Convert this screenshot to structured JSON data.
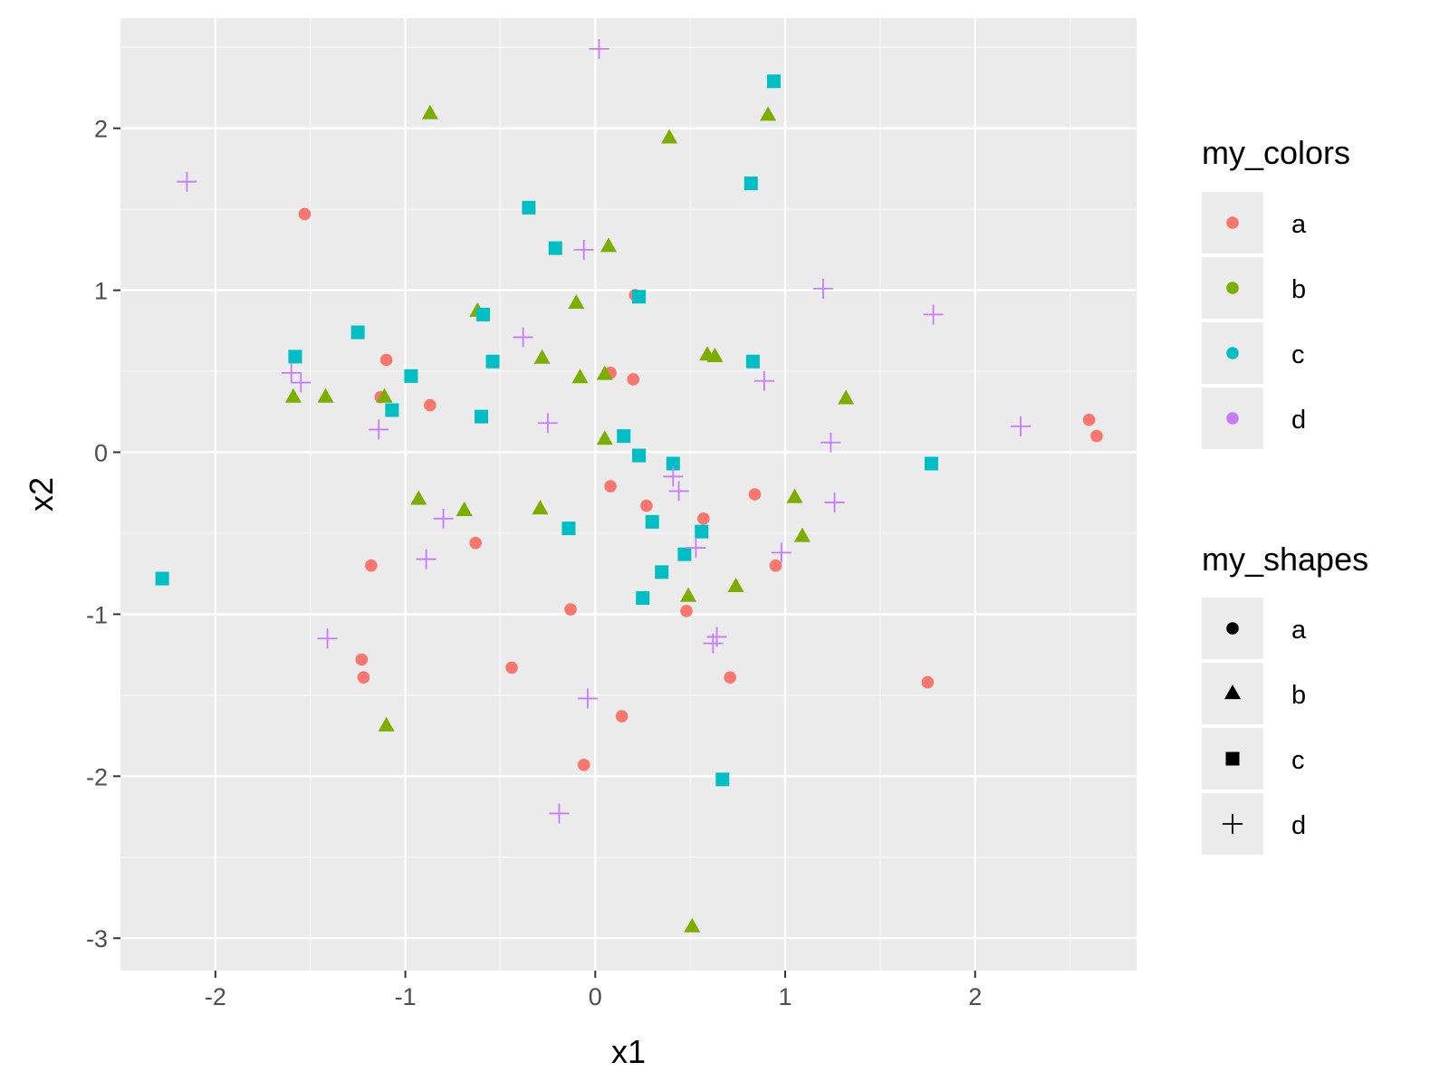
{
  "chart_data": {
    "type": "scatter",
    "title": "",
    "xlabel": "x1",
    "ylabel": "x2",
    "xlim": [
      -2.5,
      2.85
    ],
    "ylim": [
      -3.2,
      2.68
    ],
    "x_ticks": [
      -2,
      -1,
      0,
      1,
      2
    ],
    "y_ticks": [
      -3,
      -2,
      -1,
      0,
      1,
      2
    ],
    "x_tick_labels": [
      "-2",
      "-1",
      "0",
      "1",
      "2"
    ],
    "y_tick_labels": [
      "-3",
      "-2",
      "-1",
      "0",
      "1",
      "2"
    ],
    "grid": true,
    "legend_position": "right",
    "colors": {
      "a": "#F8766D",
      "b": "#7CAE00",
      "c": "#00BFC4",
      "d": "#C77CFF"
    },
    "legends": [
      {
        "title": "my_colors",
        "kind": "color",
        "entries": [
          "a",
          "b",
          "c",
          "d"
        ]
      },
      {
        "title": "my_shapes",
        "kind": "shape",
        "entries": [
          "a",
          "b",
          "c",
          "d"
        ]
      }
    ],
    "shapes": {
      "a": "circle",
      "b": "triangle",
      "c": "square",
      "d": "plus"
    },
    "series": [
      {
        "name": "a",
        "points": [
          [
            -1.53,
            1.47
          ],
          [
            -1.1,
            0.57
          ],
          [
            -1.13,
            0.34
          ],
          [
            -0.87,
            0.29
          ],
          [
            -1.18,
            -0.7
          ],
          [
            -1.23,
            -1.28
          ],
          [
            -1.22,
            -1.39
          ],
          [
            -0.63,
            -0.56
          ],
          [
            -0.44,
            -1.33
          ],
          [
            -0.13,
            -0.97
          ],
          [
            -0.06,
            -1.93
          ],
          [
            0.14,
            -1.63
          ],
          [
            0.08,
            0.49
          ],
          [
            0.2,
            0.45
          ],
          [
            0.21,
            0.97
          ],
          [
            0.08,
            -0.21
          ],
          [
            0.27,
            -0.33
          ],
          [
            0.57,
            -0.41
          ],
          [
            0.84,
            -0.26
          ],
          [
            0.95,
            -0.7
          ],
          [
            0.48,
            -0.98
          ],
          [
            0.71,
            -1.39
          ],
          [
            1.75,
            -1.42
          ],
          [
            2.6,
            0.2
          ],
          [
            2.64,
            0.1
          ]
        ]
      },
      {
        "name": "b",
        "points": [
          [
            -0.87,
            2.09
          ],
          [
            0.39,
            1.94
          ],
          [
            0.91,
            2.08
          ],
          [
            0.07,
            1.27
          ],
          [
            -0.1,
            0.92
          ],
          [
            -0.62,
            0.87
          ],
          [
            -1.59,
            0.34
          ],
          [
            -1.42,
            0.34
          ],
          [
            -1.11,
            0.34
          ],
          [
            -0.28,
            0.58
          ],
          [
            -0.08,
            0.46
          ],
          [
            0.05,
            0.48
          ],
          [
            0.59,
            0.6
          ],
          [
            0.63,
            0.59
          ],
          [
            1.32,
            0.33
          ],
          [
            0.05,
            0.08
          ],
          [
            -0.93,
            -0.29
          ],
          [
            -0.69,
            -0.36
          ],
          [
            -0.29,
            -0.35
          ],
          [
            1.05,
            -0.28
          ],
          [
            1.09,
            -0.52
          ],
          [
            0.74,
            -0.83
          ],
          [
            0.49,
            -0.89
          ],
          [
            -1.1,
            -1.69
          ],
          [
            0.51,
            -2.93
          ]
        ]
      },
      {
        "name": "c",
        "points": [
          [
            0.94,
            2.29
          ],
          [
            0.82,
            1.66
          ],
          [
            -0.35,
            1.51
          ],
          [
            -0.21,
            1.26
          ],
          [
            0.23,
            0.96
          ],
          [
            -0.59,
            0.85
          ],
          [
            -1.25,
            0.74
          ],
          [
            -1.58,
            0.59
          ],
          [
            -0.54,
            0.56
          ],
          [
            0.83,
            0.56
          ],
          [
            -0.97,
            0.47
          ],
          [
            -1.07,
            0.26
          ],
          [
            -0.6,
            0.22
          ],
          [
            0.15,
            0.1
          ],
          [
            0.23,
            -0.02
          ],
          [
            0.41,
            -0.07
          ],
          [
            1.77,
            -0.07
          ],
          [
            -0.14,
            -0.47
          ],
          [
            0.3,
            -0.43
          ],
          [
            0.56,
            -0.49
          ],
          [
            0.47,
            -0.63
          ],
          [
            0.35,
            -0.74
          ],
          [
            0.25,
            -0.9
          ],
          [
            -2.28,
            -0.78
          ],
          [
            0.67,
            -2.02
          ]
        ]
      },
      {
        "name": "d",
        "points": [
          [
            0.02,
            2.49
          ],
          [
            -2.15,
            1.67
          ],
          [
            -0.06,
            1.25
          ],
          [
            1.2,
            1.01
          ],
          [
            1.78,
            0.85
          ],
          [
            -0.38,
            0.71
          ],
          [
            -1.6,
            0.49
          ],
          [
            -1.55,
            0.43
          ],
          [
            0.89,
            0.44
          ],
          [
            -1.14,
            0.14
          ],
          [
            -0.25,
            0.18
          ],
          [
            2.24,
            0.16
          ],
          [
            1.24,
            0.06
          ],
          [
            0.41,
            -0.15
          ],
          [
            0.44,
            -0.24
          ],
          [
            1.26,
            -0.31
          ],
          [
            -0.8,
            -0.41
          ],
          [
            -0.89,
            -0.66
          ],
          [
            0.53,
            -0.59
          ],
          [
            0.98,
            -0.62
          ],
          [
            0.64,
            -1.14
          ],
          [
            0.62,
            -1.18
          ],
          [
            -1.41,
            -1.15
          ],
          [
            -0.04,
            -1.52
          ],
          [
            -0.19,
            -2.23
          ]
        ]
      }
    ]
  }
}
